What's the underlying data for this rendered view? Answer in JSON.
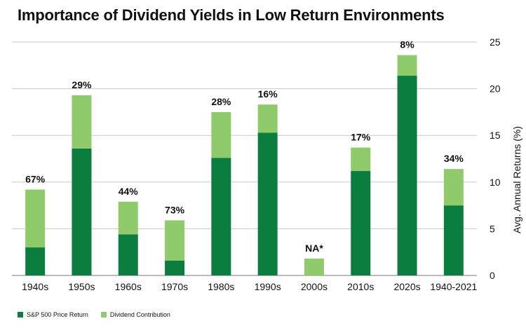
{
  "chart_data": {
    "type": "bar",
    "stacked": true,
    "title": "Importance of Dividend Yields in Low Return Environments",
    "ylabel": "Avg. Annual Returns (%)",
    "xlabel": "",
    "ylim": [
      0,
      25
    ],
    "yticks": [
      0,
      5,
      10,
      15,
      20,
      25
    ],
    "y_axis_position": "right",
    "grid": true,
    "legend_position": "bottom-left",
    "categories": [
      "1940s",
      "1950s",
      "1960s",
      "1970s",
      "1980s",
      "1990s",
      "2000s",
      "2010s",
      "2020s",
      "1940-2021"
    ],
    "series": [
      {
        "name": "S&P 500 Price Return",
        "color": "#0b7d3e",
        "values": [
          3.0,
          13.6,
          4.4,
          1.6,
          12.6,
          15.3,
          0,
          11.2,
          21.4,
          7.5
        ]
      },
      {
        "name": "Dividend Contribution",
        "color": "#8fcb6b",
        "values": [
          6.2,
          5.7,
          3.5,
          4.3,
          4.9,
          3.0,
          1.8,
          2.5,
          2.2,
          3.9
        ]
      }
    ],
    "data_labels": [
      "67%",
      "29%",
      "44%",
      "73%",
      "28%",
      "16%",
      "NA*",
      "17%",
      "8%",
      "34%"
    ]
  }
}
